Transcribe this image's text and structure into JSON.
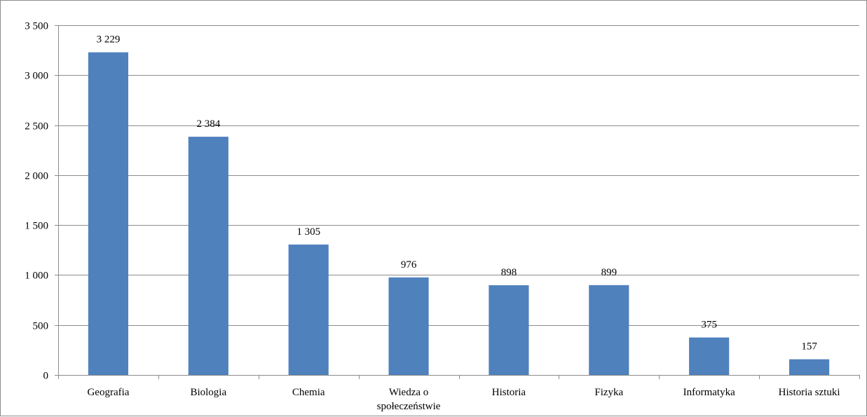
{
  "chart_data": {
    "type": "bar",
    "title": "",
    "xlabel": "",
    "ylabel": "",
    "categories": [
      "Geografia",
      "Biologia",
      "Chemia",
      "Wiedza o społeczeństwie",
      "Historia",
      "Fizyka",
      "Informatyka",
      "Historia sztuki"
    ],
    "category_lines": [
      [
        "Geografia"
      ],
      [
        "Biologia"
      ],
      [
        "Chemia"
      ],
      [
        "Wiedza o",
        "społeczeństwie"
      ],
      [
        "Historia"
      ],
      [
        "Fizyka"
      ],
      [
        "Informatyka"
      ],
      [
        "Historia sztuki"
      ]
    ],
    "values": [
      3229,
      2384,
      1305,
      976,
      898,
      899,
      375,
      157
    ],
    "data_labels": [
      "3 229",
      "2 384",
      "1 305",
      "976",
      "898",
      "899",
      "375",
      "157"
    ],
    "ylim": [
      0,
      3500
    ],
    "yticks": [
      0,
      500,
      1000,
      1500,
      2000,
      2500,
      3000,
      3500
    ],
    "ytick_labels": [
      "0",
      "500",
      "1 000",
      "1 500",
      "2 000",
      "2 500",
      "3 000",
      "3 500"
    ],
    "grid": true,
    "legend": "none",
    "bar_color": "#4F81BD",
    "grid_color": "#8C8C8C"
  }
}
